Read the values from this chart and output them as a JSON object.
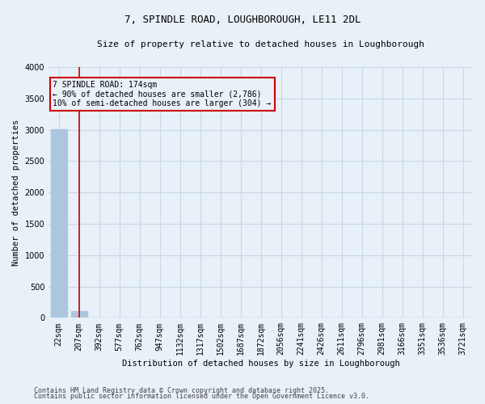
{
  "title_line1": "7, SPINDLE ROAD, LOUGHBOROUGH, LE11 2DL",
  "title_line2": "Size of property relative to detached houses in Loughborough",
  "xlabel": "Distribution of detached houses by size in Loughborough",
  "ylabel": "Number of detached properties",
  "categories": [
    "22sqm",
    "207sqm",
    "392sqm",
    "577sqm",
    "762sqm",
    "947sqm",
    "1132sqm",
    "1317sqm",
    "1502sqm",
    "1687sqm",
    "1872sqm",
    "2056sqm",
    "2241sqm",
    "2426sqm",
    "2611sqm",
    "2796sqm",
    "2981sqm",
    "3166sqm",
    "3351sqm",
    "3536sqm",
    "3721sqm"
  ],
  "values": [
    3010,
    110,
    0,
    0,
    0,
    0,
    0,
    0,
    0,
    0,
    0,
    0,
    0,
    0,
    0,
    0,
    0,
    0,
    0,
    0,
    0
  ],
  "bar_color": "#adc6e0",
  "vline_color": "#cc0000",
  "vline_x": 1,
  "ylim": [
    0,
    4000
  ],
  "yticks": [
    0,
    500,
    1000,
    1500,
    2000,
    2500,
    3000,
    3500,
    4000
  ],
  "grid_color": "#c8d8e8",
  "bg_color": "#e8f0f8",
  "annotation_text": "7 SPINDLE ROAD: 174sqm\n← 90% of detached houses are smaller (2,786)\n10% of semi-detached houses are larger (304) →",
  "annotation_box_color": "#cc0000",
  "footer_line1": "Contains HM Land Registry data © Crown copyright and database right 2025.",
  "footer_line2": "Contains public sector information licensed under the Open Government Licence v3.0.",
  "title_fontsize": 9,
  "subtitle_fontsize": 8,
  "ylabel_fontsize": 7.5,
  "xlabel_fontsize": 7.5,
  "tick_fontsize": 7,
  "annot_fontsize": 7,
  "footer_fontsize": 6
}
